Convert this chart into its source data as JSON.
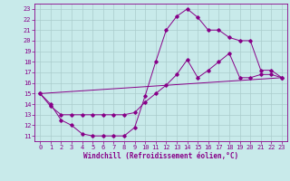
{
  "xlabel": "Windchill (Refroidissement éolien,°C)",
  "bg_color": "#c8eaea",
  "line_color": "#880088",
  "grid_color": "#aacccc",
  "xlim": [
    -0.5,
    23.5
  ],
  "ylim": [
    10.5,
    23.5
  ],
  "xticks": [
    0,
    1,
    2,
    3,
    4,
    5,
    6,
    7,
    8,
    9,
    10,
    11,
    12,
    13,
    14,
    15,
    16,
    17,
    18,
    19,
    20,
    21,
    22,
    23
  ],
  "yticks": [
    11,
    12,
    13,
    14,
    15,
    16,
    17,
    18,
    19,
    20,
    21,
    22,
    23
  ],
  "line1_x": [
    0,
    1,
    2,
    3,
    4,
    5,
    6,
    7,
    8,
    9,
    10,
    11,
    12,
    13,
    14,
    15,
    16,
    17,
    18,
    19,
    20,
    21,
    22,
    23
  ],
  "line1_y": [
    15,
    14,
    12.5,
    12,
    11.2,
    11,
    11,
    11,
    11,
    11.8,
    14.8,
    18,
    21,
    22.3,
    23,
    22.2,
    21,
    21,
    20.3,
    20,
    20.0,
    17.2,
    17.2,
    16.5
  ],
  "line2_x": [
    0,
    1,
    2,
    3,
    4,
    5,
    6,
    7,
    8,
    9,
    10,
    11,
    12,
    13,
    14,
    15,
    16,
    17,
    18,
    19,
    20,
    21,
    22,
    23
  ],
  "line2_y": [
    15,
    13.8,
    13.0,
    13.0,
    13.0,
    13.0,
    13.0,
    13.0,
    13.0,
    13.2,
    14.2,
    15.0,
    15.8,
    16.8,
    18.2,
    16.5,
    17.2,
    18.0,
    18.8,
    16.5,
    16.5,
    16.8,
    16.8,
    16.5
  ],
  "line3_x": [
    0,
    23
  ],
  "line3_y": [
    15,
    16.5
  ],
  "marker_size": 1.8,
  "lw": 0.7,
  "tick_fontsize": 5.0,
  "xlabel_fontsize": 5.5
}
